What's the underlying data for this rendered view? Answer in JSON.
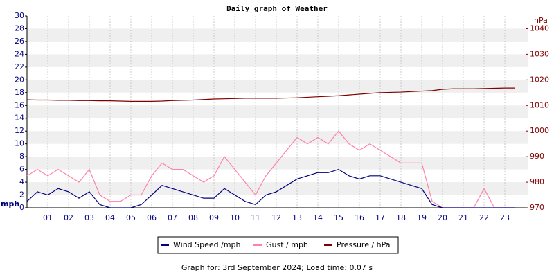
{
  "chart_data": {
    "type": "line",
    "title": "Daily graph of Weather",
    "y_label": "mph",
    "y2_label": "hPa",
    "footer": "Graph for: 3rd September 2024; Load time: 0.07 s",
    "x": [
      0,
      0.5,
      1,
      1.5,
      2,
      2.5,
      3,
      3.5,
      4,
      4.5,
      5,
      5.5,
      6,
      6.5,
      7,
      7.5,
      8,
      8.5,
      9,
      9.5,
      10,
      10.5,
      11,
      11.5,
      12,
      12.5,
      13,
      13.5,
      14,
      14.5,
      15,
      15.5,
      16,
      16.5,
      17,
      17.5,
      18,
      18.5,
      19,
      19.5,
      20,
      20.5,
      21,
      21.5,
      22,
      22.5,
      23,
      23.5
    ],
    "xlim": [
      0,
      24
    ],
    "xticks": [
      {
        "value": 1,
        "label": "01"
      },
      {
        "value": 2,
        "label": "02"
      },
      {
        "value": 3,
        "label": "03"
      },
      {
        "value": 4,
        "label": "04"
      },
      {
        "value": 5,
        "label": "05"
      },
      {
        "value": 6,
        "label": "06"
      },
      {
        "value": 7,
        "label": "07"
      },
      {
        "value": 8,
        "label": "08"
      },
      {
        "value": 9,
        "label": "09"
      },
      {
        "value": 10,
        "label": "10"
      },
      {
        "value": 11,
        "label": "11"
      },
      {
        "value": 12,
        "label": "12"
      },
      {
        "value": 13,
        "label": "13"
      },
      {
        "value": 14,
        "label": "14"
      },
      {
        "value": 15,
        "label": "15"
      },
      {
        "value": 16,
        "label": "16"
      },
      {
        "value": 17,
        "label": "17"
      },
      {
        "value": 18,
        "label": "18"
      },
      {
        "value": 19,
        "label": "19"
      },
      {
        "value": 20,
        "label": "20"
      },
      {
        "value": 21,
        "label": "21"
      },
      {
        "value": 22,
        "label": "22"
      },
      {
        "value": 23,
        "label": "23"
      }
    ],
    "ylim": [
      0,
      30
    ],
    "yticks": [
      0,
      2,
      4,
      6,
      8,
      10,
      12,
      14,
      16,
      18,
      20,
      22,
      24,
      26,
      28,
      30
    ],
    "y2lim": [
      970,
      1045
    ],
    "y2ticks": [
      970,
      980,
      990,
      1000,
      1010,
      1020,
      1030,
      1040
    ],
    "grid": true,
    "series": [
      {
        "name": "Wind Speed /mph",
        "color": "#000080",
        "values": [
          1,
          2.5,
          2,
          3,
          2.5,
          1.5,
          2.5,
          0.5,
          0,
          0,
          0,
          0.5,
          2,
          3.5,
          3,
          2.5,
          2,
          1.5,
          1.5,
          3,
          2,
          1,
          0.5,
          2,
          2.5,
          3.5,
          4.5,
          5,
          5.5,
          5.5,
          6,
          5,
          4.5,
          5,
          5,
          4.5,
          4,
          3.5,
          3,
          0.5,
          0,
          0,
          0,
          0,
          0,
          0,
          0,
          0
        ]
      },
      {
        "name": "Gust / mph",
        "color": "#ff80a8",
        "values": [
          5,
          6,
          5,
          6,
          5,
          4,
          6,
          2,
          1,
          1,
          2,
          2,
          5,
          7,
          6,
          6,
          5,
          4,
          5,
          8,
          6,
          4,
          2,
          5,
          7,
          9,
          11,
          10,
          11,
          10,
          12,
          10,
          9,
          10,
          9,
          8,
          7,
          7,
          7,
          1,
          0,
          0,
          0,
          0,
          3,
          0,
          0,
          0
        ]
      },
      {
        "name": "Pressure / hPa",
        "color": "#800000",
        "axis": "y2",
        "values": [
          1012.2,
          1012.1,
          1012.1,
          1012,
          1012,
          1011.9,
          1011.9,
          1011.8,
          1011.8,
          1011.7,
          1011.6,
          1011.6,
          1011.6,
          1011.7,
          1011.9,
          1012,
          1012.1,
          1012.3,
          1012.5,
          1012.6,
          1012.7,
          1012.8,
          1012.8,
          1012.8,
          1012.8,
          1012.9,
          1013,
          1013.2,
          1013.4,
          1013.6,
          1013.8,
          1014.1,
          1014.4,
          1014.7,
          1015,
          1015.1,
          1015.2,
          1015.4,
          1015.6,
          1015.8,
          1016.3,
          1016.5,
          1016.5,
          1016.5,
          1016.6,
          1016.7,
          1016.8,
          1016.8
        ]
      }
    ]
  }
}
